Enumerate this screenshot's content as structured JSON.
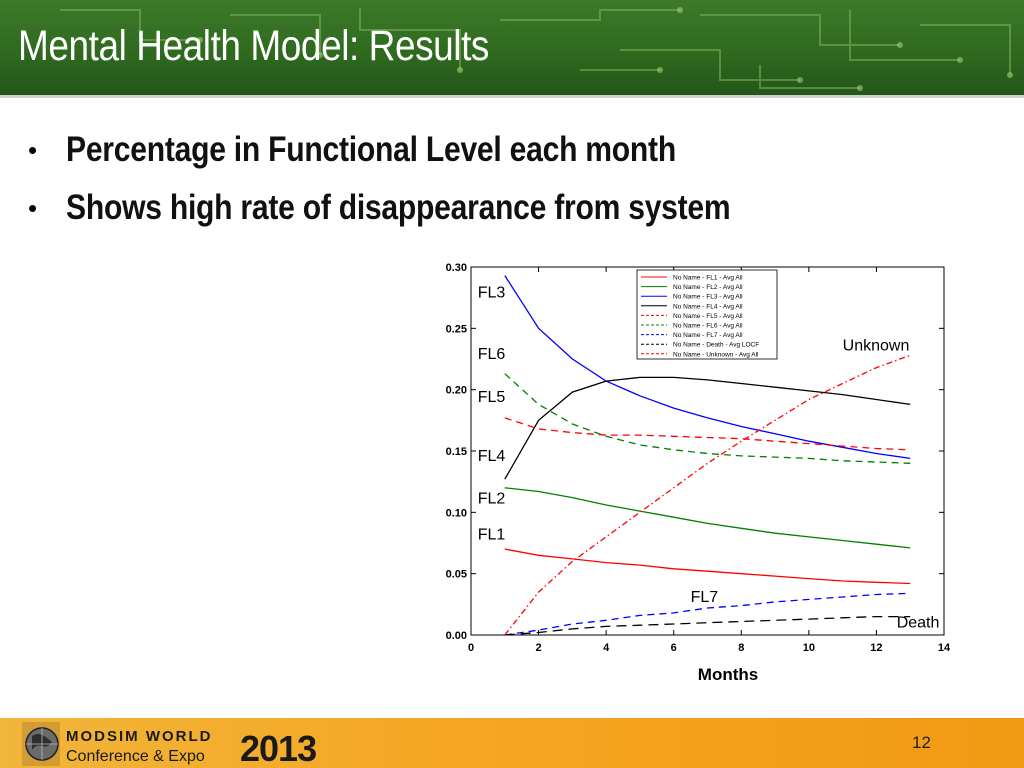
{
  "slide": {
    "title": "Mental Health Model: Results",
    "bullets": [
      "Percentage in Functional Level each month",
      "Shows high rate of disappearance from system"
    ],
    "page_number": "12"
  },
  "logo": {
    "line1": "MODSIM WORLD",
    "line2": "Conference & Expo",
    "year": "2013"
  },
  "colors": {
    "banner": "#2f6a1f",
    "footer": "#f5a623",
    "fl1": "#ff0000",
    "fl2": "#008000",
    "fl3": "#0000ff",
    "fl4": "#000000",
    "fl5": "#ff0000",
    "fl6": "#008000",
    "fl7": "#0000ff",
    "death": "#000000",
    "unknown": "#ff0000"
  },
  "chart_data": {
    "type": "line",
    "title": "",
    "xlabel": "Months",
    "ylabel": "",
    "xlim": [
      0,
      14
    ],
    "ylim": [
      0,
      0.3
    ],
    "x_ticks": [
      "0",
      "2",
      "4",
      "6",
      "8",
      "10",
      "12",
      "14"
    ],
    "y_ticks": [
      "0.00",
      "0.05",
      "0.10",
      "0.15",
      "0.20",
      "0.25",
      "0.30"
    ],
    "grid": false,
    "legend_position": "top-right",
    "x": [
      1,
      2,
      3,
      4,
      5,
      6,
      7,
      8,
      9,
      10,
      11,
      12,
      13
    ],
    "series": [
      {
        "name": "No Name - FL1 - Avg All",
        "style": "solid",
        "color": "#ff0000",
        "values": [
          0.07,
          0.065,
          0.062,
          0.059,
          0.057,
          0.054,
          0.052,
          0.05,
          0.048,
          0.046,
          0.044,
          0.043,
          0.042
        ]
      },
      {
        "name": "No Name - FL2 - Avg All",
        "style": "solid",
        "color": "#008000",
        "values": [
          0.12,
          0.117,
          0.112,
          0.106,
          0.101,
          0.096,
          0.091,
          0.087,
          0.083,
          0.08,
          0.077,
          0.074,
          0.071
        ]
      },
      {
        "name": "No Name - FL3 - Avg All",
        "style": "solid",
        "color": "#0000ff",
        "values": [
          0.293,
          0.25,
          0.225,
          0.207,
          0.195,
          0.185,
          0.177,
          0.17,
          0.164,
          0.158,
          0.153,
          0.148,
          0.144
        ]
      },
      {
        "name": "No Name - FL4 - Avg All",
        "style": "solid",
        "color": "#000000",
        "values": [
          0.127,
          0.175,
          0.198,
          0.207,
          0.21,
          0.21,
          0.208,
          0.205,
          0.202,
          0.199,
          0.196,
          0.192,
          0.188
        ]
      },
      {
        "name": "No Name - FL5 - Avg All",
        "style": "dashed",
        "color": "#ff0000",
        "values": [
          0.177,
          0.168,
          0.165,
          0.163,
          0.163,
          0.162,
          0.161,
          0.16,
          0.158,
          0.156,
          0.154,
          0.152,
          0.151
        ]
      },
      {
        "name": "No Name - FL6 - Avg All",
        "style": "dashed",
        "color": "#008000",
        "values": [
          0.213,
          0.188,
          0.172,
          0.162,
          0.155,
          0.151,
          0.148,
          0.146,
          0.145,
          0.144,
          0.142,
          0.141,
          0.14
        ]
      },
      {
        "name": "No Name - FL7 - Avg All",
        "style": "dashed",
        "color": "#0000ff",
        "values": [
          0.0,
          0.004,
          0.009,
          0.012,
          0.016,
          0.018,
          0.022,
          0.024,
          0.027,
          0.029,
          0.031,
          0.033,
          0.034
        ]
      },
      {
        "name": "No Name - Death - Avg LOCF",
        "style": "longdash",
        "color": "#000000",
        "values": [
          0.0,
          0.002,
          0.005,
          0.007,
          0.008,
          0.009,
          0.01,
          0.011,
          0.012,
          0.013,
          0.014,
          0.015,
          0.015
        ]
      },
      {
        "name": "No Name - Unknown - Avg All",
        "style": "dashdot",
        "color": "#ff0000",
        "values": [
          0.0,
          0.035,
          0.06,
          0.08,
          0.1,
          0.12,
          0.14,
          0.158,
          0.175,
          0.192,
          0.205,
          0.218,
          0.228
        ]
      }
    ],
    "annotations": [
      {
        "text": "FL3",
        "x": 0.2,
        "y": 0.275
      },
      {
        "text": "FL6",
        "x": 0.2,
        "y": 0.225
      },
      {
        "text": "FL5",
        "x": 0.2,
        "y": 0.19
      },
      {
        "text": "FL4",
        "x": 0.2,
        "y": 0.142
      },
      {
        "text": "FL2",
        "x": 0.2,
        "y": 0.107
      },
      {
        "text": "FL1",
        "x": 0.2,
        "y": 0.078
      },
      {
        "text": "FL7",
        "x": 6.5,
        "y": 0.027
      },
      {
        "text": "Death",
        "x": 12.6,
        "y": 0.006
      },
      {
        "text": "Unknown",
        "x": 11.0,
        "y": 0.232
      }
    ]
  }
}
